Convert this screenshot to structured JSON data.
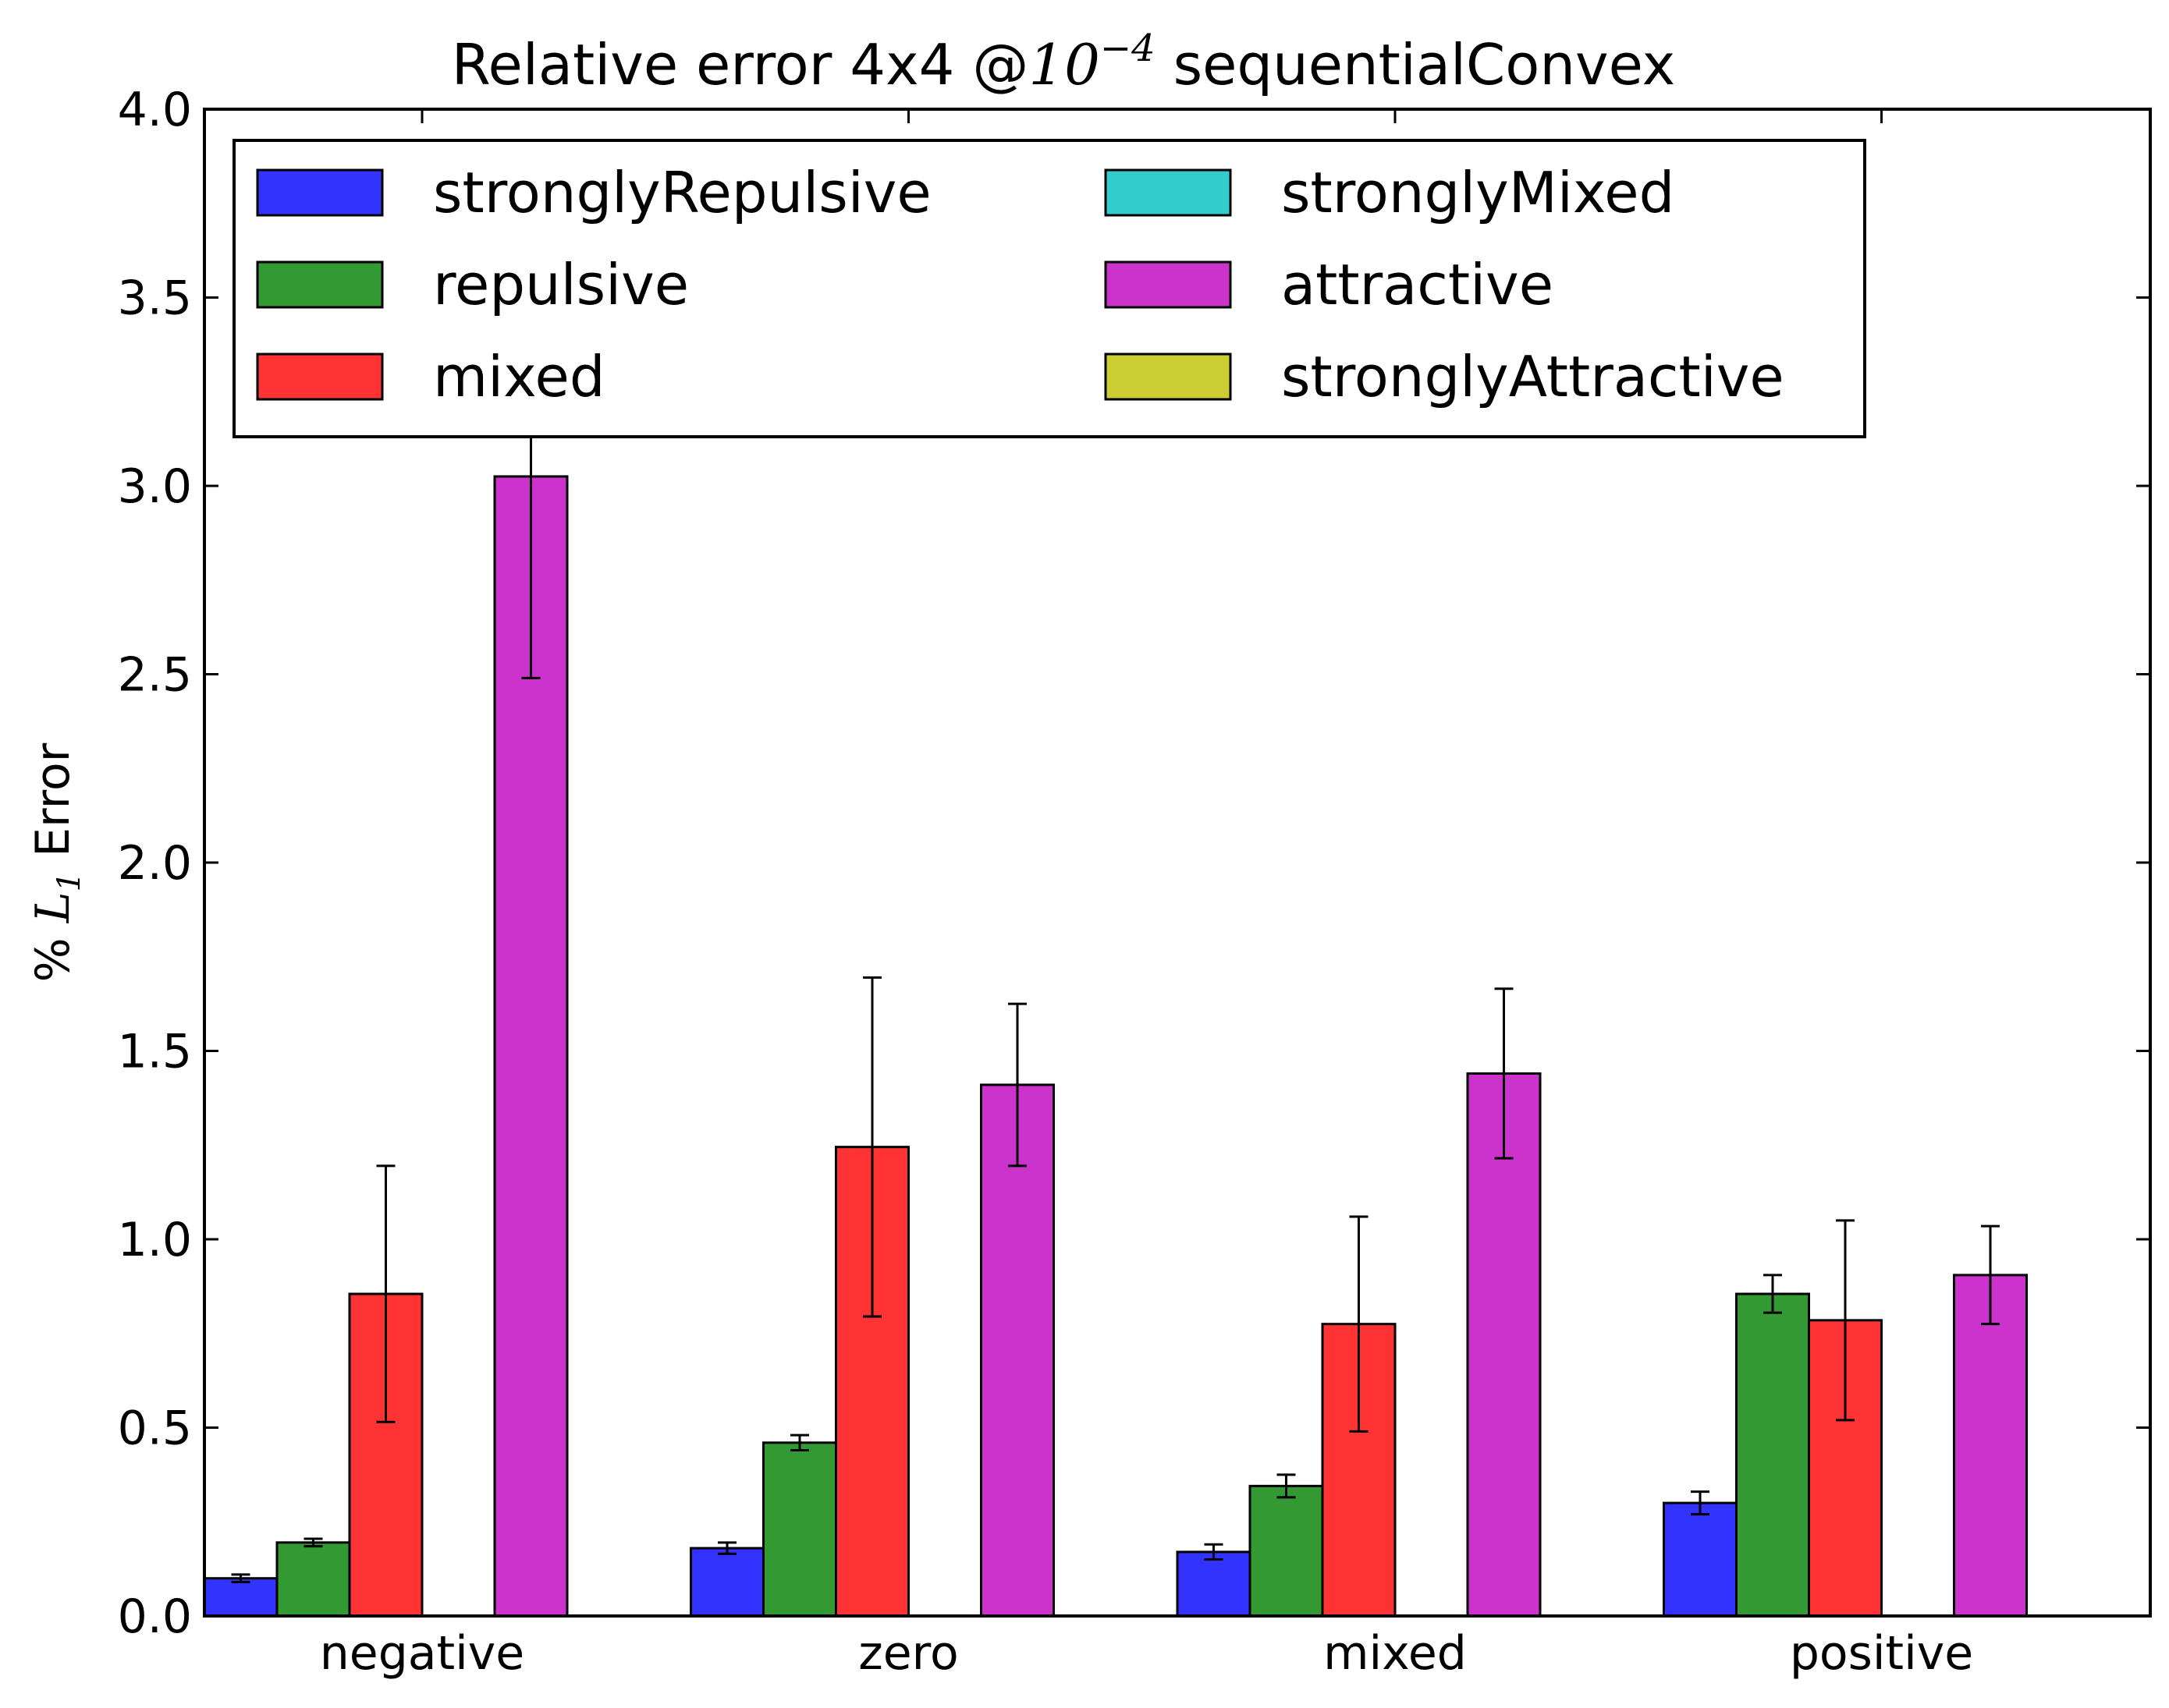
{
  "chart_data": {
    "type": "bar",
    "title": {
      "prefix": "Relative error 4x4 @",
      "math_base": "10",
      "math_exp": "−4",
      "suffix": " sequentialConvex"
    },
    "ylabel": {
      "prefix": "% ",
      "math_var": "L",
      "math_sub": "1",
      "suffix": " Error"
    },
    "xlabel": "",
    "ylim": [
      0.0,
      4.0
    ],
    "yticks": [
      "0.0",
      "0.5",
      "1.0",
      "1.5",
      "2.0",
      "2.5",
      "3.0",
      "3.5",
      "4.0"
    ],
    "categories": [
      "negative",
      "zero",
      "mixed",
      "positive"
    ],
    "series": [
      {
        "name": "stronglyRepulsive",
        "color": "#3333ff",
        "values": [
          0.1,
          0.18,
          0.17,
          0.3
        ],
        "errors": [
          0.01,
          0.015,
          0.02,
          0.03
        ]
      },
      {
        "name": "repulsive",
        "color": "#339933",
        "values": [
          0.195,
          0.46,
          0.345,
          0.855
        ],
        "errors": [
          0.01,
          0.02,
          0.03,
          0.05
        ]
      },
      {
        "name": "mixed",
        "color": "#ff3333",
        "values": [
          0.855,
          1.245,
          0.775,
          0.785
        ],
        "errors": [
          0.34,
          0.45,
          0.285,
          0.265
        ]
      },
      {
        "name": "stronglyMixed",
        "color": "#33cccc",
        "values": [
          0,
          0,
          0,
          0
        ],
        "errors": [
          0,
          0,
          0,
          0
        ]
      },
      {
        "name": "attractive",
        "color": "#cc33cc",
        "values": [
          3.025,
          1.41,
          1.44,
          0.905
        ],
        "errors": [
          0.535,
          0.215,
          0.225,
          0.13
        ]
      },
      {
        "name": "stronglyAttractive",
        "color": "#cccc33",
        "values": [
          0,
          0,
          0,
          0
        ],
        "errors": [
          0,
          0,
          0,
          0
        ]
      }
    ],
    "grid": false,
    "legend_placement": "top-left, 2 columns"
  }
}
